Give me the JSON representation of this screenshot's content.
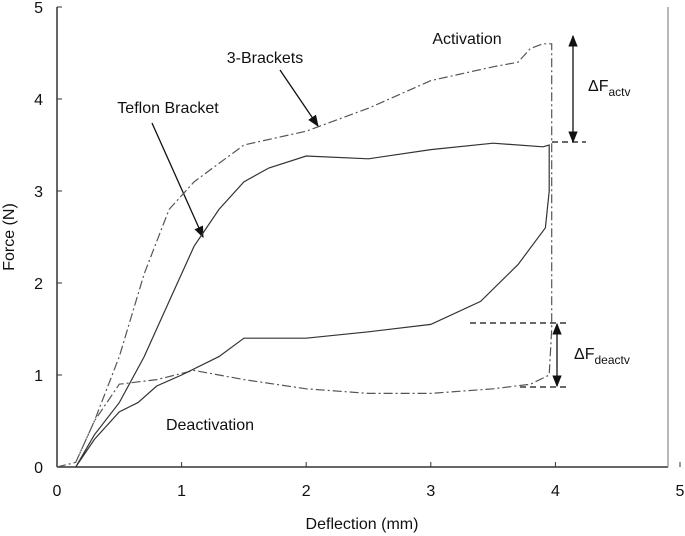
{
  "chart_data": {
    "type": "line",
    "x_label": "Deflection (mm)",
    "y_label": "Force (N)",
    "xlim": [
      0,
      5
    ],
    "ylim": [
      0,
      5
    ],
    "xticks": [
      0,
      1,
      2,
      3,
      4,
      5
    ],
    "yticks": [
      0,
      1,
      2,
      3,
      4,
      5
    ],
    "series": [
      {
        "name": "3-Brackets",
        "color": "#555555",
        "dash": "9 3 2 3",
        "x": [
          0,
          0.15,
          0.3,
          0.5,
          0.7,
          0.9,
          1.1,
          1.3,
          1.5,
          2,
          2.5,
          3,
          3.5,
          3.7,
          3.8,
          3.9,
          3.97,
          3.97,
          3.97,
          3.95,
          3.8,
          3.5,
          3,
          2.5,
          2,
          1.5,
          1.1,
          0.8,
          0.5,
          0.3,
          0.15
        ],
        "values": [
          0,
          0.05,
          0.5,
          1.2,
          2.1,
          2.8,
          3.1,
          3.3,
          3.5,
          3.65,
          3.9,
          4.2,
          4.35,
          4.4,
          4.55,
          4.6,
          4.6,
          3.0,
          1.5,
          1.0,
          0.9,
          0.85,
          0.8,
          0.8,
          0.85,
          0.95,
          1.05,
          0.95,
          0.9,
          0.5,
          0.05
        ]
      },
      {
        "name": "Teflon Bracket",
        "color": "#333333",
        "x": [
          0.15,
          0.3,
          0.5,
          0.7,
          0.9,
          1.1,
          1.3,
          1.5,
          1.7,
          2,
          2.5,
          3,
          3.5,
          3.9,
          3.95,
          3.95,
          3.92,
          3.7,
          3.4,
          3,
          2.5,
          2,
          1.5,
          1.3,
          1.0,
          0.8,
          0.65,
          0.5,
          0.3,
          0.15
        ],
        "values": [
          0,
          0.35,
          0.7,
          1.2,
          1.8,
          2.4,
          2.8,
          3.1,
          3.25,
          3.38,
          3.35,
          3.45,
          3.52,
          3.48,
          3.5,
          3.0,
          2.6,
          2.2,
          1.8,
          1.55,
          1.47,
          1.4,
          1.4,
          1.2,
          1.0,
          0.88,
          0.7,
          0.6,
          0.3,
          0
        ]
      }
    ],
    "annotations": [
      {
        "text": "Activation"
      },
      {
        "text": "3-Brackets"
      },
      {
        "text": "Teflon Bracket"
      },
      {
        "text": "Deactivation"
      },
      {
        "text": "ΔF",
        "sub": "actv"
      },
      {
        "text": "ΔF",
        "sub": "deactv"
      }
    ]
  }
}
